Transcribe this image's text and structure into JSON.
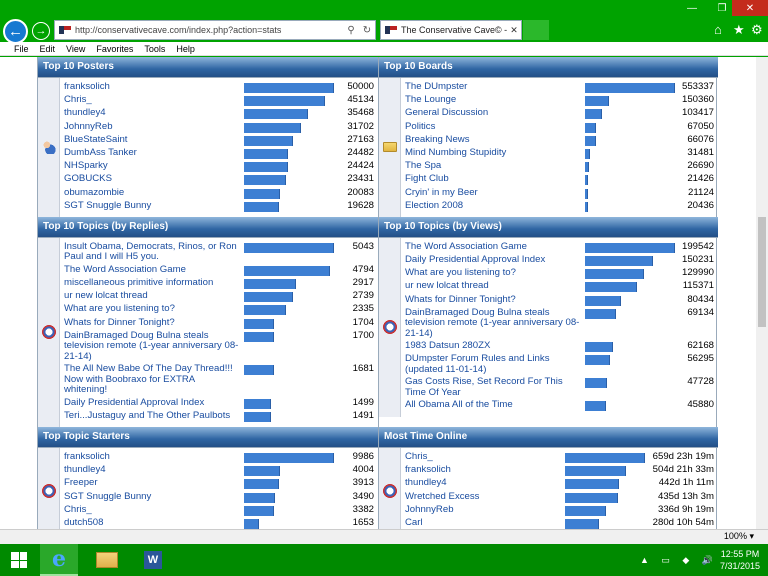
{
  "browser": {
    "url": "http://conservativecave.com/index.php?action=stats",
    "tab_title": "The Conservative Cave© - ...",
    "zoom": "100%"
  },
  "menubar": [
    "File",
    "Edit",
    "View",
    "Favorites",
    "Tools",
    "Help"
  ],
  "icons": {
    "back": "←",
    "forward": "→",
    "search": "⚲",
    "refresh": "↻",
    "close": "✕",
    "minimize": "—",
    "maximize": "❐",
    "home": "⌂",
    "star": "★",
    "gear": "⚙",
    "zoom_caret": "▾"
  },
  "colors": {
    "bar": "#3d7fd3",
    "link": "#1a4da0",
    "header": "#2f65a3"
  },
  "sections": [
    {
      "title": "Top 10 Posters",
      "icon": "people",
      "max": 50000,
      "items": [
        {
          "label": "franksolich",
          "value": "50000",
          "n": 50000
        },
        {
          "label": "Chris_",
          "value": "45134",
          "n": 45134
        },
        {
          "label": "thundley4",
          "value": "35468",
          "n": 35468
        },
        {
          "label": "JohnnyReb",
          "value": "31702",
          "n": 31702
        },
        {
          "label": "BlueStateSaint",
          "value": "27163",
          "n": 27163
        },
        {
          "label": "DumbAss Tanker",
          "value": "24482",
          "n": 24482
        },
        {
          "label": "NHSparky",
          "value": "24424",
          "n": 24424
        },
        {
          "label": "GOBUCKS",
          "value": "23431",
          "n": 23431
        },
        {
          "label": "obumazombie",
          "value": "20083",
          "n": 20083
        },
        {
          "label": "SGT Snuggle Bunny",
          "value": "19628",
          "n": 19628
        }
      ]
    },
    {
      "title": "Top 10 Boards",
      "icon": "folder",
      "max": 553337,
      "items": [
        {
          "label": "The DUmpster",
          "value": "553337",
          "n": 553337
        },
        {
          "label": "The Lounge",
          "value": "150360",
          "n": 150360
        },
        {
          "label": "General Discussion",
          "value": "103417",
          "n": 103417
        },
        {
          "label": "Politics",
          "value": "67050",
          "n": 67050
        },
        {
          "label": "Breaking News",
          "value": "66076",
          "n": 66076
        },
        {
          "label": "Mind Numbing Stupidity",
          "value": "31481",
          "n": 31481
        },
        {
          "label": "The Spa",
          "value": "26690",
          "n": 26690
        },
        {
          "label": "Fight Club",
          "value": "21426",
          "n": 21426
        },
        {
          "label": "Cryin' in my Beer",
          "value": "21124",
          "n": 21124
        },
        {
          "label": "Election 2008",
          "value": "20436",
          "n": 20436
        }
      ]
    },
    {
      "title": "Top 10 Topics (by Replies)",
      "icon": "stats",
      "max": 5043,
      "items": [
        {
          "label": "Insult Obama, Democrats, Rinos, or Ron Paul and I will H5 you.",
          "value": "5043",
          "n": 5043
        },
        {
          "label": "The Word Association Game",
          "value": "4794",
          "n": 4794
        },
        {
          "label": "miscellaneous primitive information",
          "value": "2917",
          "n": 2917
        },
        {
          "label": "ur new lolcat thread",
          "value": "2739",
          "n": 2739
        },
        {
          "label": "What are you listening to?",
          "value": "2335",
          "n": 2335
        },
        {
          "label": "Whats for Dinner Tonight?",
          "value": "1704",
          "n": 1704
        },
        {
          "label": "DainBramaged Doug Bulna steals television remote (1-year anniversary 08-21-14)",
          "value": "1700",
          "n": 1700
        },
        {
          "label": "The All New Babe Of The Day Thread!!! Now with Boobraxo for EXTRA whitening!",
          "value": "1681",
          "n": 1681
        },
        {
          "label": "Daily Presidential Approval Index",
          "value": "1499",
          "n": 1499
        },
        {
          "label": "Teri...Justaguy and The Other Paulbots",
          "value": "1491",
          "n": 1491
        }
      ]
    },
    {
      "title": "Top 10 Topics (by Views)",
      "icon": "stats",
      "max": 199542,
      "items": [
        {
          "label": "The Word Association Game",
          "value": "199542",
          "n": 199542
        },
        {
          "label": "Daily Presidential Approval Index",
          "value": "150231",
          "n": 150231
        },
        {
          "label": "What are you listening to?",
          "value": "129990",
          "n": 129990
        },
        {
          "label": "ur new lolcat thread",
          "value": "115371",
          "n": 115371
        },
        {
          "label": "Whats for Dinner Tonight?",
          "value": "80434",
          "n": 80434
        },
        {
          "label": "DainBramaged Doug Bulna steals television remote (1-year anniversary 08-21-14)",
          "value": "69134",
          "n": 69134
        },
        {
          "label": "1983 Datsun 280ZX",
          "value": "62168",
          "n": 62168
        },
        {
          "label": "DUmpster Forum Rules and Links (updated 11-01-14)",
          "value": "56295",
          "n": 56295
        },
        {
          "label": "Gas Costs Rise, Set Record For This Time Of Year",
          "value": "47728",
          "n": 47728
        },
        {
          "label": "All Obama All of the Time",
          "value": "45880",
          "n": 45880
        }
      ]
    },
    {
      "title": "Top Topic Starters",
      "icon": "stats",
      "max": 9986,
      "items": [
        {
          "label": "franksolich",
          "value": "9986",
          "n": 9986
        },
        {
          "label": "thundley4",
          "value": "4004",
          "n": 4004
        },
        {
          "label": "Freeper",
          "value": "3913",
          "n": 3913
        },
        {
          "label": "SGT Snuggle Bunny",
          "value": "3490",
          "n": 3490
        },
        {
          "label": "Chris_",
          "value": "3382",
          "n": 3382
        },
        {
          "label": "dutch508",
          "value": "1653",
          "n": 1653
        }
      ]
    },
    {
      "title": "Most Time Online",
      "icon": "stats",
      "max": 659,
      "items": [
        {
          "label": "Chris_",
          "value": "659d 23h 19m",
          "n": 659
        },
        {
          "label": "franksolich",
          "value": "504d 21h 33m",
          "n": 504
        },
        {
          "label": "thundley4",
          "value": "442d 1h 11m",
          "n": 442
        },
        {
          "label": "Wretched Excess",
          "value": "435d 13h 3m",
          "n": 435
        },
        {
          "label": "JohnnyReb",
          "value": "336d 9h 19m",
          "n": 336
        },
        {
          "label": "Carl",
          "value": "280d 10h 54m",
          "n": 280
        }
      ]
    }
  ],
  "taskbar": {
    "time": "12:55 PM",
    "date": "7/31/2015",
    "word_glyph": "W",
    "ie_glyph": "e"
  }
}
